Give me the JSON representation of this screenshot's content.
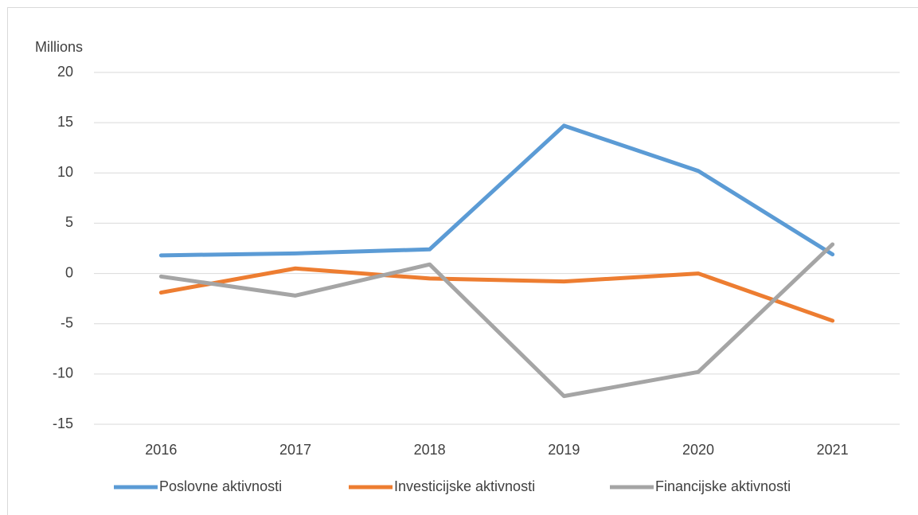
{
  "chart_data": {
    "type": "line",
    "y_label": "Millions",
    "categories": [
      "2016",
      "2017",
      "2018",
      "2019",
      "2020",
      "2021"
    ],
    "series": [
      {
        "name": "Poslovne aktivnosti",
        "color": "#5b9bd5",
        "values": [
          1.8,
          2.0,
          2.4,
          14.7,
          10.2,
          1.9
        ]
      },
      {
        "name": "Investicijske aktivnosti",
        "color": "#ed7d31",
        "values": [
          -1.9,
          0.5,
          -0.5,
          -0.8,
          0,
          -4.7
        ]
      },
      {
        "name": "Financijske aktivnosti",
        "color": "#a5a5a5",
        "values": [
          -0.3,
          -2.2,
          0.9,
          -12.2,
          -9.8,
          2.9
        ]
      }
    ],
    "ylim": [
      -15,
      20
    ],
    "yticks": [
      -15,
      -10,
      -5,
      0,
      5,
      10,
      15,
      20
    ],
    "grid": true,
    "legend": "bottom"
  }
}
